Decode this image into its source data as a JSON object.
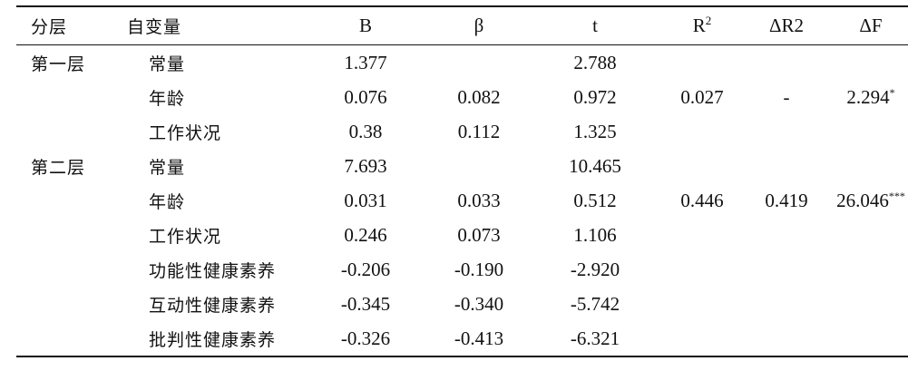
{
  "header": {
    "layer": "分层",
    "variable": "自变量",
    "B": "B",
    "beta": "β",
    "t": "t",
    "r2_base": "R",
    "r2_sup": "2",
    "delta_r2": "ΔR2",
    "delta_f": "ΔF"
  },
  "rows": [
    {
      "layer": "第一层",
      "variable": "常量",
      "B": "1.377",
      "beta": "",
      "t": "2.788",
      "r2": "",
      "dr2": "",
      "df": "",
      "df_sig": ""
    },
    {
      "layer": "",
      "variable": "年龄",
      "B": "0.076",
      "beta": "0.082",
      "t": "0.972",
      "r2": "0.027",
      "dr2": "-",
      "df": "2.294",
      "df_sig": "*"
    },
    {
      "layer": "",
      "variable": "工作状况",
      "B": "0.38",
      "beta": "0.112",
      "t": "1.325",
      "r2": "",
      "dr2": "",
      "df": "",
      "df_sig": ""
    },
    {
      "layer": "第二层",
      "variable": "常量",
      "B": "7.693",
      "beta": "",
      "t": "10.465",
      "r2": "",
      "dr2": "",
      "df": "",
      "df_sig": ""
    },
    {
      "layer": "",
      "variable": "年龄",
      "B": "0.031",
      "beta": "0.033",
      "t": "0.512",
      "r2": "0.446",
      "dr2": "0.419",
      "df": "26.046",
      "df_sig": "***"
    },
    {
      "layer": "",
      "variable": "工作状况",
      "B": "0.246",
      "beta": "0.073",
      "t": "1.106",
      "r2": "",
      "dr2": "",
      "df": "",
      "df_sig": ""
    },
    {
      "layer": "",
      "variable": "功能性健康素养",
      "B": "-0.206",
      "beta": "-0.190",
      "t": "-2.920",
      "r2": "",
      "dr2": "",
      "df": "",
      "df_sig": ""
    },
    {
      "layer": "",
      "variable": "互动性健康素养",
      "B": "-0.345",
      "beta": "-0.340",
      "t": "-5.742",
      "r2": "",
      "dr2": "",
      "df": "",
      "df_sig": ""
    },
    {
      "layer": "",
      "variable": "批判性健康素养",
      "B": "-0.326",
      "beta": "-0.413",
      "t": "-6.321",
      "r2": "",
      "dr2": "",
      "df": "",
      "df_sig": ""
    }
  ]
}
